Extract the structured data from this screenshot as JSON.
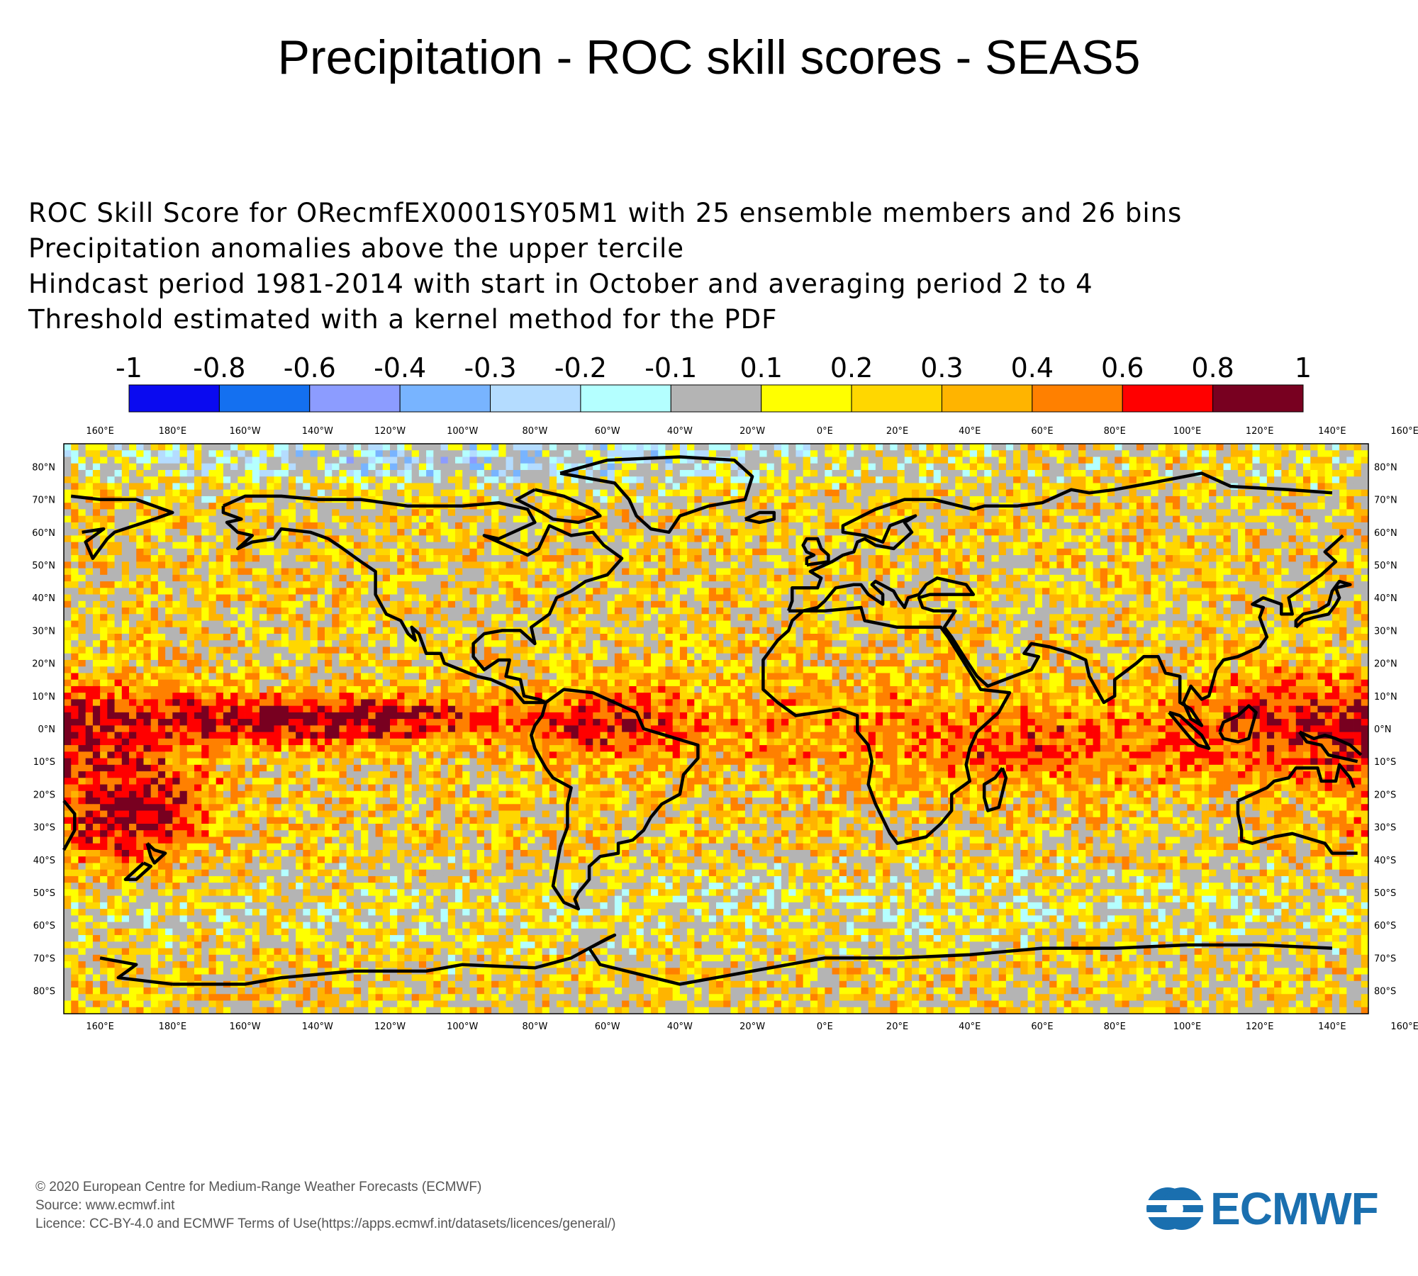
{
  "title": "Precipitation - ROC skill scores - SEAS5",
  "subtitle_lines": [
    "ROC Skill Score for ORecmfEX0001SY05M1 with 25 ensemble members and 26 bins",
    "Precipitation anomalies above the upper tercile",
    "Hindcast period 1981-2014 with start in October and averaging period  2 to  4",
    "Threshold estimated with a kernel method for the PDF"
  ],
  "colorbar": {
    "labels": [
      "-1",
      "-0.8",
      "-0.6",
      "-0.4",
      "-0.3",
      "-0.2",
      "-0.1",
      "0.1",
      "0.2",
      "0.3",
      "0.4",
      "0.6",
      "0.8",
      "1"
    ],
    "colors": [
      "#0a0af0",
      "#1470f0",
      "#8c9cff",
      "#78b4ff",
      "#b4dcff",
      "#b4ffff",
      "#b4b4b4",
      "#ffff00",
      "#ffd700",
      "#ffb400",
      "#ff8000",
      "#ff0000",
      "#780020"
    ]
  },
  "map": {
    "top_lon_labels": [
      "160°E",
      "180°E",
      "160°W",
      "140°W",
      "120°W",
      "100°W",
      "80°W",
      "60°W",
      "40°W",
      "20°W",
      "0°E",
      "20°E",
      "40°E",
      "60°E",
      "80°E",
      "100°E",
      "120°E",
      "140°E",
      "160°E"
    ],
    "lat_labels": [
      "80°N",
      "70°N",
      "60°N",
      "50°N",
      "40°N",
      "30°N",
      "20°N",
      "10°N",
      "0°N",
      "10°S",
      "20°S",
      "30°S",
      "40°S",
      "50°S",
      "60°S",
      "70°S",
      "80°S"
    ],
    "grid_resolution_deg": 2,
    "coastline_color": "#000000"
  },
  "footer_lines": [
    "© 2020 European Centre for Medium-Range Weather Forecasts (ECMWF)",
    "Source: www.ecmwf.int",
    "Licence: CC-BY-4.0 and ECMWF Terms of Use(https://apps.ecmwf.int/datasets/licences/general/)"
  ],
  "logo": {
    "text": "ECMWF",
    "color": "#1a6faf"
  }
}
